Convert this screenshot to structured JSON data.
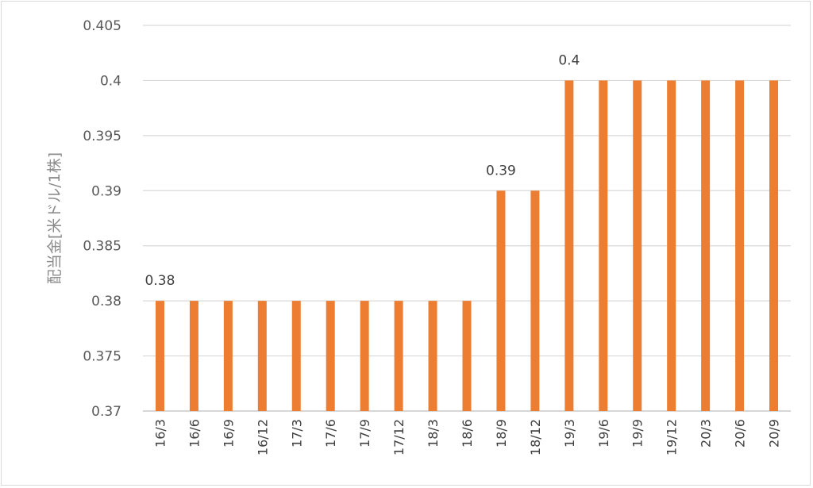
{
  "chart_data": {
    "type": "bar",
    "title": "",
    "xlabel": "",
    "ylabel": "配当金[米ドル/1株]",
    "ylim": [
      0.37,
      0.405
    ],
    "yticks": [
      "0.37",
      "0.375",
      "0.38",
      "0.385",
      "0.39",
      "0.395",
      "0.4",
      "0.405"
    ],
    "categories": [
      "16/3",
      "16/6",
      "16/9",
      "16/12",
      "17/3",
      "17/6",
      "17/9",
      "17/12",
      "18/3",
      "18/6",
      "18/9",
      "18/12",
      "19/3",
      "19/6",
      "19/9",
      "19/12",
      "20/3",
      "20/6",
      "20/9"
    ],
    "values": [
      0.38,
      0.38,
      0.38,
      0.38,
      0.38,
      0.38,
      0.38,
      0.38,
      0.38,
      0.38,
      0.39,
      0.39,
      0.4,
      0.4,
      0.4,
      0.4,
      0.4,
      0.4,
      0.4
    ],
    "data_labels": [
      {
        "category": "16/3",
        "text": "0.38"
      },
      {
        "category": "18/9",
        "text": "0.39"
      },
      {
        "category": "19/3",
        "text": "0.4"
      }
    ],
    "grid": true,
    "legend": "none",
    "colors": {
      "bar": "#ED7D31",
      "grid": "#d9d9d9",
      "axis": "#bfbfbf"
    }
  }
}
